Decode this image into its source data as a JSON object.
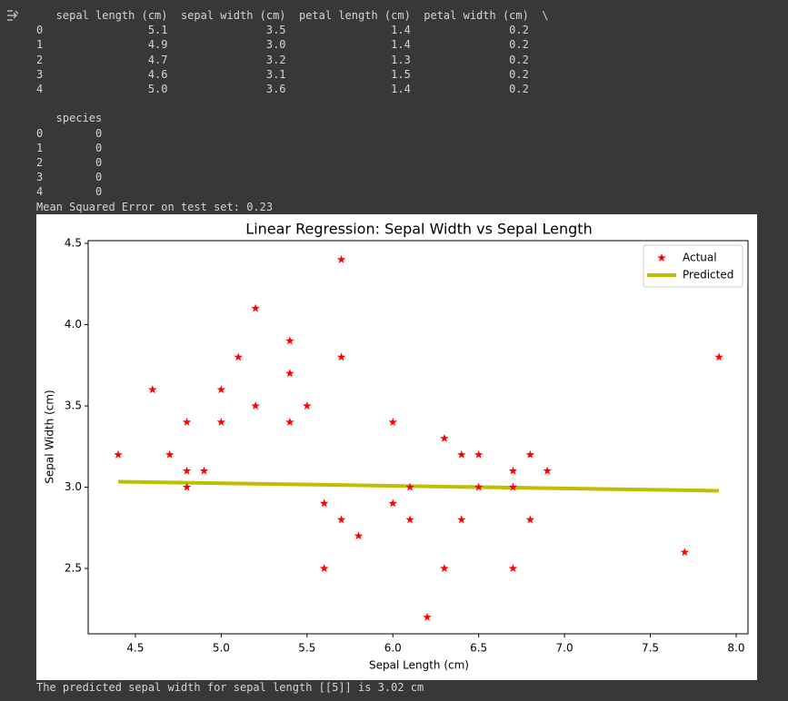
{
  "output": {
    "top_lines": [
      "   sepal length (cm)  sepal width (cm)  petal length (cm)  petal width (cm)  \\",
      "0                5.1               3.5                1.4               0.2",
      "1                4.9               3.0                1.4               0.2",
      "2                4.7               3.2                1.3               0.2",
      "3                4.6               3.1                1.5               0.2",
      "4                5.0               3.6                1.4               0.2",
      " ",
      "   species",
      "0        0",
      "1        0",
      "2        0",
      "3        0",
      "4        0",
      "Mean Squared Error on test set: 0.23"
    ],
    "bottom_line": "The predicted sepal width for sepal length [[5]] is 3.02 cm"
  },
  "chart_data": {
    "type": "scatter",
    "title": "Linear Regression: Sepal Width vs Sepal Length",
    "x_label": "Sepal Length (cm)",
    "y_label": "Sepal Width (cm)",
    "xlim": [
      4.225,
      8.069
    ],
    "ylim": [
      2.098,
      4.517
    ],
    "xticks": [
      4.5,
      {
        "value": 5.0,
        "label": "5.0"
      },
      5.5,
      {
        "value": 6.0,
        "label": "6.0"
      },
      6.5,
      {
        "value": 7.0,
        "label": "7.0"
      },
      7.5,
      {
        "value": 8.0,
        "label": "8.0"
      }
    ],
    "yticks": [
      2.5,
      {
        "value": 3.0,
        "label": "3.0"
      },
      3.5,
      {
        "value": 4.0,
        "label": "4.0"
      },
      4.5
    ],
    "legend": "upper right",
    "series": [
      {
        "name": "Actual",
        "color": "#ff0000",
        "mark": "star",
        "x": [
          4.4,
          4.6,
          4.7,
          4.8,
          4.8,
          4.8,
          4.9,
          5.0,
          5.0,
          5.1,
          5.2,
          5.2,
          5.4,
          5.4,
          5.4,
          5.5,
          5.6,
          5.6,
          5.7,
          5.7,
          5.7,
          5.8,
          6.0,
          6.0,
          6.1,
          6.1,
          6.2,
          6.3,
          6.3,
          6.4,
          6.4,
          6.5,
          6.5,
          6.7,
          6.7,
          6.7,
          6.8,
          6.8,
          6.9,
          7.7,
          7.9
        ],
        "values": [
          3.2,
          3.6,
          3.2,
          3.4,
          3.1,
          3.0,
          3.1,
          3.6,
          3.4,
          3.8,
          4.1,
          3.5,
          3.9,
          3.7,
          3.4,
          3.5,
          2.9,
          2.5,
          4.4,
          3.8,
          2.8,
          2.7,
          3.4,
          2.9,
          2.8,
          3.0,
          2.2,
          3.3,
          2.5,
          3.2,
          2.8,
          3.2,
          3.0,
          3.1,
          3.0,
          2.5,
          3.2,
          2.8,
          3.1,
          2.6,
          3.8
        ]
      },
      {
        "name": "Predicted",
        "color": "#bfbf00",
        "mark": "line",
        "x": [
          4.4,
          7.9
        ],
        "values": [
          3.034,
          2.978
        ]
      }
    ]
  }
}
